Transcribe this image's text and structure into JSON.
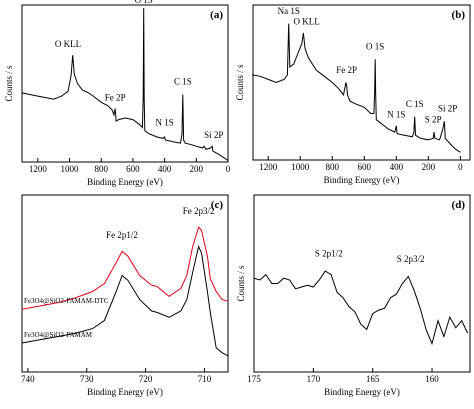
{
  "chart_data": [
    {
      "type": "line",
      "label": "(a)",
      "x_label": "Binding Energy (eV)",
      "y_label": "Counts / s",
      "xlim": [
        1300,
        0
      ],
      "ylim": [
        0,
        100
      ],
      "xticks": [
        1200,
        1000,
        800,
        600,
        400,
        200,
        0
      ],
      "x": [
        1300,
        1250,
        1200,
        1150,
        1100,
        1050,
        1010,
        990,
        980,
        970,
        950,
        920,
        880,
        850,
        800,
        760,
        730,
        720,
        712,
        706,
        690,
        650,
        600,
        560,
        540,
        535,
        532,
        529,
        525,
        500,
        450,
        410,
        400,
        395,
        350,
        300,
        290,
        285,
        280,
        270,
        230,
        200,
        160,
        150,
        140,
        110,
        100,
        95,
        60,
        30,
        0
      ],
      "series": [
        {
          "color": "#000000",
          "values": [
            44,
            43,
            42,
            41,
            40,
            42,
            45,
            55,
            68,
            56,
            50,
            46,
            44,
            42,
            38,
            36,
            33,
            30,
            34,
            26,
            27,
            28,
            27,
            24,
            22,
            40,
            98,
            40,
            20,
            18,
            16,
            15,
            16,
            14,
            13,
            12,
            18,
            43,
            14,
            12,
            11,
            10,
            9,
            10,
            8,
            9,
            10,
            7,
            5,
            3,
            1
          ]
        }
      ],
      "annotations": [
        {
          "text": "O KLL",
          "x": 1010,
          "y": 72
        },
        {
          "text": "Fe 2P",
          "x": 712,
          "y": 38
        },
        {
          "text": "O 1S",
          "x": 532,
          "y": 100
        },
        {
          "text": "N 1S",
          "x": 400,
          "y": 22
        },
        {
          "text": "C 1S",
          "x": 285,
          "y": 48
        },
        {
          "text": "Si 2P",
          "x": 90,
          "y": 14
        }
      ]
    },
    {
      "type": "line",
      "label": "(b)",
      "x_label": "Binding Energy (eV)",
      "y_label": "Counts / s",
      "xlim": [
        1295,
        -60
      ],
      "ylim": [
        0,
        100
      ],
      "xticks": [
        1200,
        1000,
        800,
        600,
        400,
        200,
        0
      ],
      "x": [
        1300,
        1250,
        1200,
        1150,
        1100,
        1080,
        1072,
        1065,
        1040,
        1010,
        990,
        980,
        970,
        950,
        900,
        850,
        800,
        760,
        730,
        715,
        710,
        705,
        690,
        650,
        600,
        560,
        540,
        535,
        532,
        529,
        525,
        500,
        450,
        410,
        400,
        395,
        350,
        300,
        290,
        285,
        280,
        250,
        200,
        170,
        165,
        160,
        130,
        110,
        100,
        95,
        60,
        30,
        0
      ],
      "series": [
        {
          "color": "#000000",
          "values": [
            55,
            54,
            52,
            50,
            52,
            55,
            88,
            60,
            62,
            70,
            75,
            82,
            72,
            66,
            58,
            54,
            50,
            46,
            42,
            50,
            48,
            42,
            38,
            36,
            34,
            30,
            30,
            45,
            65,
            42,
            26,
            24,
            20,
            18,
            22,
            17,
            16,
            15,
            18,
            28,
            16,
            14,
            13,
            14,
            18,
            14,
            13,
            20,
            25,
            14,
            10,
            7,
            5
          ]
        }
      ],
      "annotations": [
        {
          "text": "Na 1S",
          "x": 1072,
          "y": 93
        },
        {
          "text": "O KLL",
          "x": 960,
          "y": 86
        },
        {
          "text": "Fe 2P",
          "x": 710,
          "y": 55
        },
        {
          "text": "O 1S",
          "x": 532,
          "y": 70
        },
        {
          "text": "N 1S",
          "x": 400,
          "y": 26
        },
        {
          "text": "C 1S",
          "x": 285,
          "y": 33
        },
        {
          "text": "S 2P",
          "x": 170,
          "y": 23
        },
        {
          "text": "Si 2P",
          "x": 80,
          "y": 30
        }
      ]
    },
    {
      "type": "line",
      "label": "(c)",
      "x_label": "Binding Energy (eV)",
      "xlim": [
        741,
        706
      ],
      "ylim": [
        0,
        110
      ],
      "xticks": [
        740,
        730,
        720,
        710
      ],
      "x": [
        741,
        738,
        735,
        732,
        729,
        727,
        725,
        724,
        723,
        721,
        719,
        718,
        716,
        714,
        713,
        712,
        711,
        710.5,
        709.5,
        709,
        708,
        707,
        706
      ],
      "series": [
        {
          "name": "Fe3O4@SiO2-PAMAM-DTC",
          "color": "#e0001b",
          "values": [
            39,
            41,
            43,
            46,
            50,
            55,
            68,
            75,
            72,
            60,
            54,
            53,
            47,
            52,
            60,
            78,
            90,
            88,
            72,
            58,
            50,
            45,
            44
          ]
        },
        {
          "name": "Fe3O4@SiO2-PAMAM",
          "color": "#000000",
          "values": [
            18,
            20,
            22,
            24,
            27,
            32,
            50,
            60,
            57,
            45,
            38,
            37,
            34,
            38,
            45,
            62,
            78,
            74,
            50,
            37,
            15,
            12,
            10
          ]
        }
      ],
      "annotations": [
        {
          "text": "Fe 2p1/2",
          "x": 724,
          "y": 82
        },
        {
          "text": "Fe 2p3/2",
          "x": 711,
          "y": 97
        }
      ]
    },
    {
      "type": "line",
      "label": "(d)",
      "x_label": "Binding Energy (eV)",
      "y_label": "Counts / s",
      "xlim": [
        175,
        156.8
      ],
      "ylim": [
        0,
        100
      ],
      "xticks": [
        175,
        170,
        165,
        160
      ],
      "x": [
        175,
        174.5,
        174,
        173.5,
        173,
        172.5,
        172,
        171.5,
        171,
        170.5,
        170,
        169.5,
        169,
        168.5,
        168,
        167.5,
        167,
        166.5,
        166,
        165.5,
        165,
        164.5,
        164,
        163.5,
        163,
        162.5,
        162,
        161.5,
        161,
        160.5,
        160,
        159.5,
        159,
        158.5,
        158,
        157.5,
        157
      ],
      "series": [
        {
          "color": "#000000",
          "values": [
            53,
            52,
            55,
            50,
            50,
            53,
            52,
            47,
            48,
            49,
            48,
            52,
            57,
            55,
            45,
            42,
            37,
            34,
            27,
            24,
            33,
            35,
            36,
            42,
            44,
            50,
            54,
            46,
            36,
            24,
            16,
            29,
            20,
            31,
            25,
            29,
            22
          ]
        }
      ],
      "annotations": [
        {
          "text": "S 2p1/2",
          "x": 168.7,
          "y": 64
        },
        {
          "text": "S 2p3/2",
          "x": 161.8,
          "y": 61
        }
      ]
    }
  ]
}
